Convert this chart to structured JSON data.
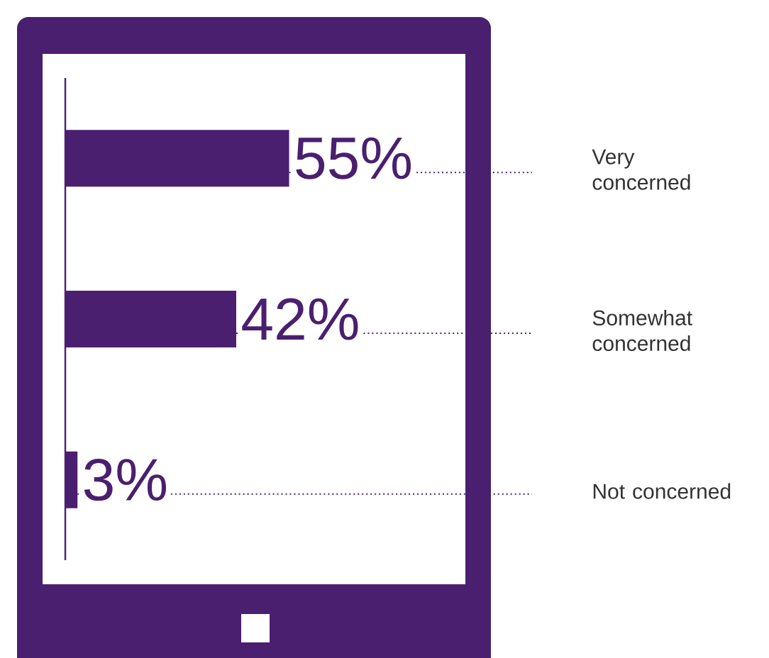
{
  "chart_data": {
    "type": "bar",
    "orientation": "horizontal",
    "categories": [
      "Very concerned",
      "Somewhat concerned",
      "Not concerned"
    ],
    "values": [
      55,
      42,
      3
    ],
    "value_labels": [
      "55%",
      "42%",
      "3%"
    ],
    "color": "#4b1f6f"
  }
}
